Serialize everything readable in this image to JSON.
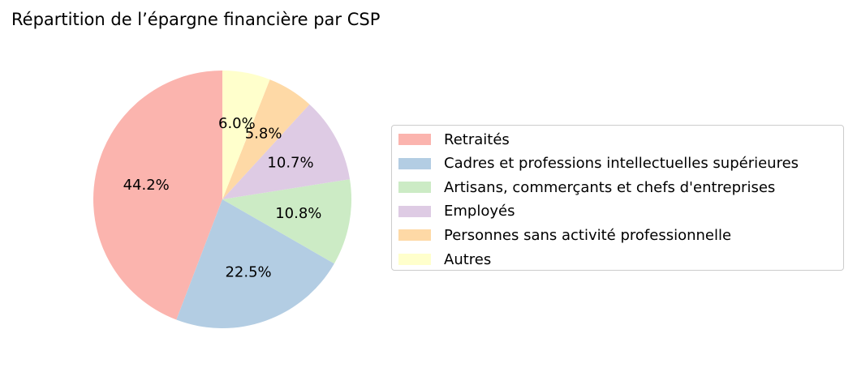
{
  "chart_data": {
    "type": "pie",
    "title": "Répartition de l’épargne financière par CSP",
    "categories": [
      "Retraités",
      "Cadres et professions intellectuelles supérieures",
      "Artisans, commerçants et chefs d'entreprises",
      "Employés",
      "Personnes sans activité professionnelle",
      "Autres"
    ],
    "values": [
      44.2,
      22.5,
      10.8,
      10.7,
      5.8,
      6.0
    ],
    "value_labels": [
      "44.2%",
      "22.5%",
      "10.8%",
      "10.7%",
      "5.8%",
      "6.0%"
    ],
    "colors": [
      "#fbb4ae",
      "#b3cde3",
      "#ccebc5",
      "#decbe4",
      "#fed9a6",
      "#ffffcc"
    ],
    "start_angle_deg": 90,
    "direction": "counterclockwise",
    "legend_placement": "right"
  }
}
